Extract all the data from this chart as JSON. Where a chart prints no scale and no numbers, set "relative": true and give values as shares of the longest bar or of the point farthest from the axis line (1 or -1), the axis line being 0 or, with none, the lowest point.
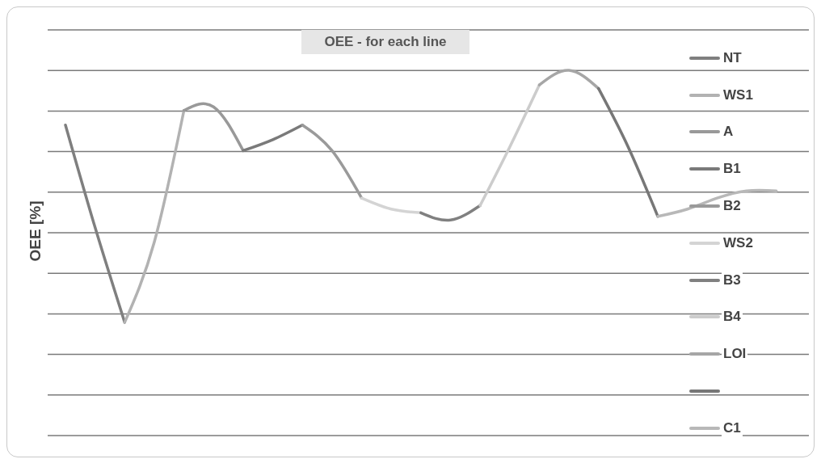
{
  "chart_data": {
    "type": "line",
    "title": "OEE - for each line",
    "ylabel": "OEE [%]",
    "relative": true,
    "grid": "y",
    "legend": "right",
    "marker": "none",
    "line_style": "solid",
    "categories": [
      null,
      null,
      null,
      null,
      null,
      null,
      null,
      null,
      null,
      null,
      null,
      null,
      null,
      null,
      null,
      null,
      null,
      null,
      null,
      null,
      null,
      null,
      null,
      null,
      null
    ],
    "series": [
      {
        "name": "NT",
        "color": "#7f7f7f",
        "values": [
          0.85,
          0.57,
          0.31,
          null,
          null,
          null,
          null,
          null,
          null,
          null,
          null,
          null,
          null,
          null,
          null,
          null,
          null,
          null,
          null,
          null,
          null,
          null,
          null,
          null,
          null
        ]
      },
      {
        "name": "WS1",
        "color": "#b2b2b2",
        "values": [
          null,
          null,
          0.31,
          0.53,
          0.89,
          null,
          null,
          null,
          null,
          null,
          null,
          null,
          null,
          null,
          null,
          null,
          null,
          null,
          null,
          null,
          null,
          null,
          null,
          null,
          null
        ]
      },
      {
        "name": "A",
        "color": "#999999",
        "values": [
          null,
          null,
          null,
          null,
          0.89,
          0.9,
          0.78,
          null,
          null,
          null,
          null,
          null,
          null,
          null,
          null,
          null,
          null,
          null,
          null,
          null,
          null,
          null,
          null,
          null,
          null
        ]
      },
      {
        "name": "B1",
        "color": "#7a7a7a",
        "values": [
          null,
          null,
          null,
          null,
          null,
          null,
          0.78,
          0.81,
          0.85,
          null,
          null,
          null,
          null,
          null,
          null,
          null,
          null,
          null,
          null,
          null,
          null,
          null,
          null,
          null,
          null
        ]
      },
      {
        "name": "B2",
        "color": "#9a9a9a",
        "values": [
          null,
          null,
          null,
          null,
          null,
          null,
          null,
          null,
          0.85,
          0.78,
          0.65,
          null,
          null,
          null,
          null,
          null,
          null,
          null,
          null,
          null,
          null,
          null,
          null,
          null,
          null
        ]
      },
      {
        "name": "WS2",
        "color": "#d4d4d4",
        "values": [
          null,
          null,
          null,
          null,
          null,
          null,
          null,
          null,
          null,
          null,
          0.65,
          0.62,
          0.61,
          null,
          null,
          null,
          null,
          null,
          null,
          null,
          null,
          null,
          null,
          null,
          null
        ]
      },
      {
        "name": "B3",
        "color": "#808080",
        "values": [
          null,
          null,
          null,
          null,
          null,
          null,
          null,
          null,
          null,
          null,
          null,
          null,
          0.61,
          0.59,
          0.63,
          null,
          null,
          null,
          null,
          null,
          null,
          null,
          null,
          null,
          null
        ]
      },
      {
        "name": "B4",
        "color": "#cccccc",
        "values": [
          null,
          null,
          null,
          null,
          null,
          null,
          null,
          null,
          null,
          null,
          null,
          null,
          null,
          null,
          0.63,
          0.79,
          0.96,
          null,
          null,
          null,
          null,
          null,
          null,
          null,
          null
        ]
      },
      {
        "name": "LOI",
        "color": "#a6a6a6",
        "values": [
          null,
          null,
          null,
          null,
          null,
          null,
          null,
          null,
          null,
          null,
          null,
          null,
          null,
          null,
          null,
          null,
          0.96,
          1,
          0.95,
          null,
          null,
          null,
          null,
          null,
          null
        ]
      },
      {
        "name": null,
        "color": "#777777",
        "values": [
          null,
          null,
          null,
          null,
          null,
          null,
          null,
          null,
          null,
          null,
          null,
          null,
          null,
          null,
          null,
          null,
          null,
          null,
          0.95,
          0.79,
          0.6,
          null,
          null,
          null,
          null
        ]
      },
      {
        "name": "C1",
        "color": "#b8b8b8",
        "values": [
          null,
          null,
          null,
          null,
          null,
          null,
          null,
          null,
          null,
          null,
          null,
          null,
          null,
          null,
          null,
          null,
          null,
          null,
          null,
          null,
          0.6,
          0.62,
          0.65,
          0.67,
          0.67
        ]
      }
    ]
  }
}
